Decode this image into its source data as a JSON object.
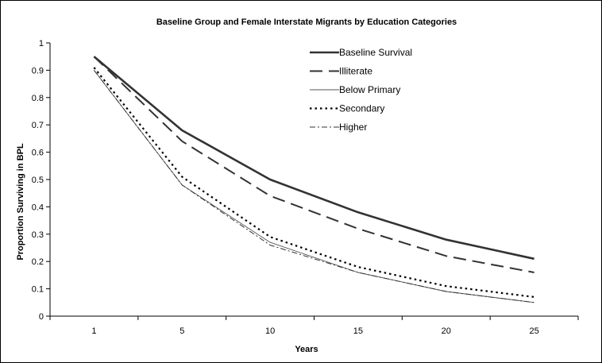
{
  "chart_data": {
    "type": "line",
    "title": "Baseline Group and Female Interstate Migrants by Education Categories",
    "xlabel": "Years",
    "ylabel": "Proportion Surviving in BPL",
    "categories": [
      "1",
      "5",
      "10",
      "15",
      "20",
      "25"
    ],
    "ylim": [
      0,
      1
    ],
    "yticks": [
      "0",
      "0.1",
      "0.2",
      "0.3",
      "0.4",
      "0.5",
      "0.6",
      "0.7",
      "0.8",
      "0.9",
      "1"
    ],
    "grid": false,
    "legend_position": "top-right",
    "series": [
      {
        "name": "Baseline Survival",
        "values": [
          0.95,
          0.68,
          0.5,
          0.38,
          0.28,
          0.21
        ],
        "style": "solid-thick",
        "color": "#333333"
      },
      {
        "name": "Illiterate",
        "values": [
          0.95,
          0.64,
          0.44,
          0.32,
          0.22,
          0.16
        ],
        "style": "long-dash",
        "color": "#333333"
      },
      {
        "name": "Below Primary",
        "values": [
          0.9,
          0.48,
          0.27,
          0.16,
          0.09,
          0.05
        ],
        "style": "solid-thin",
        "color": "#555555"
      },
      {
        "name": "Secondary",
        "values": [
          0.91,
          0.51,
          0.29,
          0.18,
          0.11,
          0.07
        ],
        "style": "dotted",
        "color": "#000000"
      },
      {
        "name": "Higher",
        "values": [
          0.9,
          0.48,
          0.26,
          0.16,
          0.09,
          0.05
        ],
        "style": "dash-dot",
        "color": "#333333"
      }
    ]
  }
}
